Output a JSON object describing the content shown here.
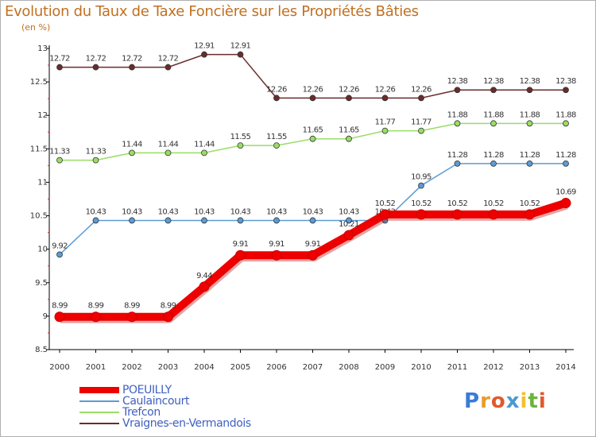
{
  "chart_data": {
    "type": "line",
    "title": "Evolution du Taux de Taxe Foncière sur les Propriétés Bâties",
    "ylabel": "(en %)",
    "xlabel": "",
    "categories": [
      "2000",
      "2001",
      "2002",
      "2003",
      "2004",
      "2005",
      "2006",
      "2007",
      "2008",
      "2009",
      "2010",
      "2011",
      "2012",
      "2013",
      "2014"
    ],
    "ylim": [
      8.5,
      13
    ],
    "yticks": [
      8.5,
      9,
      9.5,
      10,
      10.5,
      11,
      11.5,
      12,
      12.5,
      13
    ],
    "ytick_labels": [
      "8.5",
      "9",
      "9.5",
      "10",
      "10.5",
      "11",
      "11.5",
      "12",
      "12.5",
      "13"
    ],
    "series": [
      {
        "name": "Vraignes-en-Vermandois",
        "color": "#6b2b2b",
        "values": [
          12.72,
          12.72,
          12.72,
          12.72,
          12.91,
          12.91,
          12.26,
          12.26,
          12.26,
          12.26,
          12.26,
          12.38,
          12.38,
          12.38,
          12.38
        ],
        "labels": [
          "12.72",
          "12.72",
          "12.72",
          "12.72",
          "12.91",
          "12.91",
          "12.26",
          "12.26",
          "12.26",
          "12.26",
          "12.26",
          "12.38",
          "12.38",
          "12.38",
          "12.38"
        ]
      },
      {
        "name": "Trefcon",
        "color": "#99dd66",
        "values": [
          11.33,
          11.33,
          11.44,
          11.44,
          11.44,
          11.55,
          11.55,
          11.65,
          11.65,
          11.77,
          11.77,
          11.88,
          11.88,
          11.88,
          11.88
        ],
        "labels": [
          "11.33",
          "11.33",
          "11.44",
          "11.44",
          "11.44",
          "11.55",
          "11.55",
          "11.65",
          "11.65",
          "11.77",
          "11.77",
          "11.88",
          "11.88",
          "11.88",
          "11.88"
        ]
      },
      {
        "name": "Caulaincourt",
        "color": "#5b9bd5",
        "values": [
          9.92,
          10.43,
          10.43,
          10.43,
          10.43,
          10.43,
          10.43,
          10.43,
          10.43,
          10.43,
          10.95,
          11.28,
          11.28,
          11.28,
          11.28
        ],
        "labels": [
          "9.92",
          "10.43",
          "10.43",
          "10.43",
          "10.43",
          "10.43",
          "10.43",
          "10.43",
          "10.43",
          "10.43",
          "10.95",
          "11.28",
          "11.28",
          "11.28",
          "11.28"
        ]
      },
      {
        "name": "POEUILLY",
        "color": "#ee0000",
        "values": [
          8.99,
          8.99,
          8.99,
          8.99,
          9.44,
          9.91,
          9.91,
          9.91,
          10.21,
          10.52,
          10.52,
          10.52,
          10.52,
          10.52,
          10.69
        ],
        "labels": [
          "8.99",
          "8.99",
          "8.99",
          "8.99",
          "9.44",
          "9.91",
          "9.91",
          "9.91",
          "10.21",
          "10.52",
          "10.52",
          "10.52",
          "10.52",
          "10.52",
          "10.69"
        ]
      }
    ],
    "legend": [
      "POEUILLY",
      "Caulaincourt",
      "Trefcon",
      "Vraignes-en-Vermandois"
    ],
    "legend_position": "bottom-left",
    "grid": false
  },
  "brand": {
    "letters": [
      "P",
      "r",
      "o",
      "x",
      "i",
      "t",
      "i"
    ],
    "colors": [
      "#3a7bd5",
      "#e89b2a",
      "#e05a2a",
      "#4a9ad0",
      "#f2c12e",
      "#6bb43a",
      "#e05a2a"
    ]
  }
}
